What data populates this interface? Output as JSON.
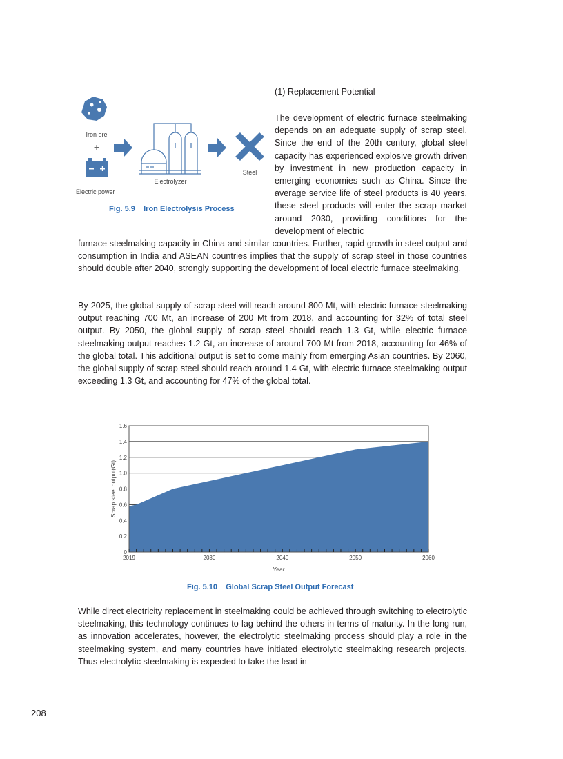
{
  "section_heading": "(1) Replacement Potential",
  "paragraphs": {
    "p1_column": "The development of electric furnace steelmaking depends on an adequate supply of scrap steel. Since the end of the 20th century, global steel capacity has experienced explosive growth driven by investment in new production capacity in emerging economies such as China. Since the average service life of steel products is 40 years, these steel products will enter the scrap market around 2030, providing conditions for the development of electric",
    "p1_continued": "furnace steelmaking capacity in China and similar countries. Further, rapid growth in steel output and consumption in India and ASEAN countries implies that the supply of scrap steel in those countries should double after 2040, strongly supporting the development of local electric furnace steelmaking.",
    "p2": "By 2025, the global supply of scrap steel will reach around 800 Mt, with electric furnace steelmaking output reaching 700 Mt, an increase of 200 Mt from 2018, and accounting for 32% of total steel output. By 2050, the global supply of scrap steel should reach 1.3 Gt, while electric furnace steelmaking output reaches 1.2 Gt, an increase of around 700 Mt from 2018, accounting for 46% of the global total. This additional output is set to come mainly from emerging Asian countries. By 2060, the global supply of scrap steel should reach around 1.4 Gt, with electric furnace steelmaking output exceeding 1.3 Gt, and accounting for 47% of the global total.",
    "p3": "While direct electricity replacement in steelmaking could be achieved through switching to electrolytic steelmaking, this technology continues to lag behind the others in terms of maturity. In the long run, as innovation accelerates, however, the electrolytic steelmaking process should play a role in the steelmaking system, and many countries have initiated electrolytic steelmaking research projects. Thus electrolytic steelmaking is expected to take the lead in"
  },
  "fig59": {
    "caption": "Fig. 5.9    Iron Electrolysis Process",
    "labels": {
      "iron_ore": "Iron ore",
      "plus": "+",
      "electric_power": "Electric power",
      "electrolyzer": "Electrolyzer",
      "steel": "Steel"
    },
    "icons": [
      "iron-ore-icon",
      "battery-icon",
      "arrow-right-icon",
      "electrolyzer-icon",
      "steel-icon"
    ],
    "color": "#4a79b0"
  },
  "chart_data": {
    "type": "area",
    "title": "",
    "caption": "Fig. 5.10    Global Scrap Steel Output Forecast",
    "xlabel": "Year",
    "ylabel": "Scrap steel output(Gt)",
    "x": [
      2019,
      2020,
      2025,
      2030,
      2035,
      2040,
      2045,
      2050,
      2055,
      2060
    ],
    "values": [
      0.58,
      0.6,
      0.8,
      0.9,
      1.0,
      1.1,
      1.2,
      1.3,
      1.35,
      1.4
    ],
    "xlim": [
      2019,
      2060
    ],
    "ylim": [
      0,
      1.6
    ],
    "xticks": [
      "2019",
      "2030",
      "2040",
      "2050",
      "2060"
    ],
    "yticks": [
      "0",
      "0.2",
      "0.4",
      "0.6",
      "0.8",
      "1.0",
      "1.2",
      "1.4",
      "1.6"
    ],
    "grid": true,
    "fill_color": "#4a79b0"
  },
  "page_number": "208"
}
